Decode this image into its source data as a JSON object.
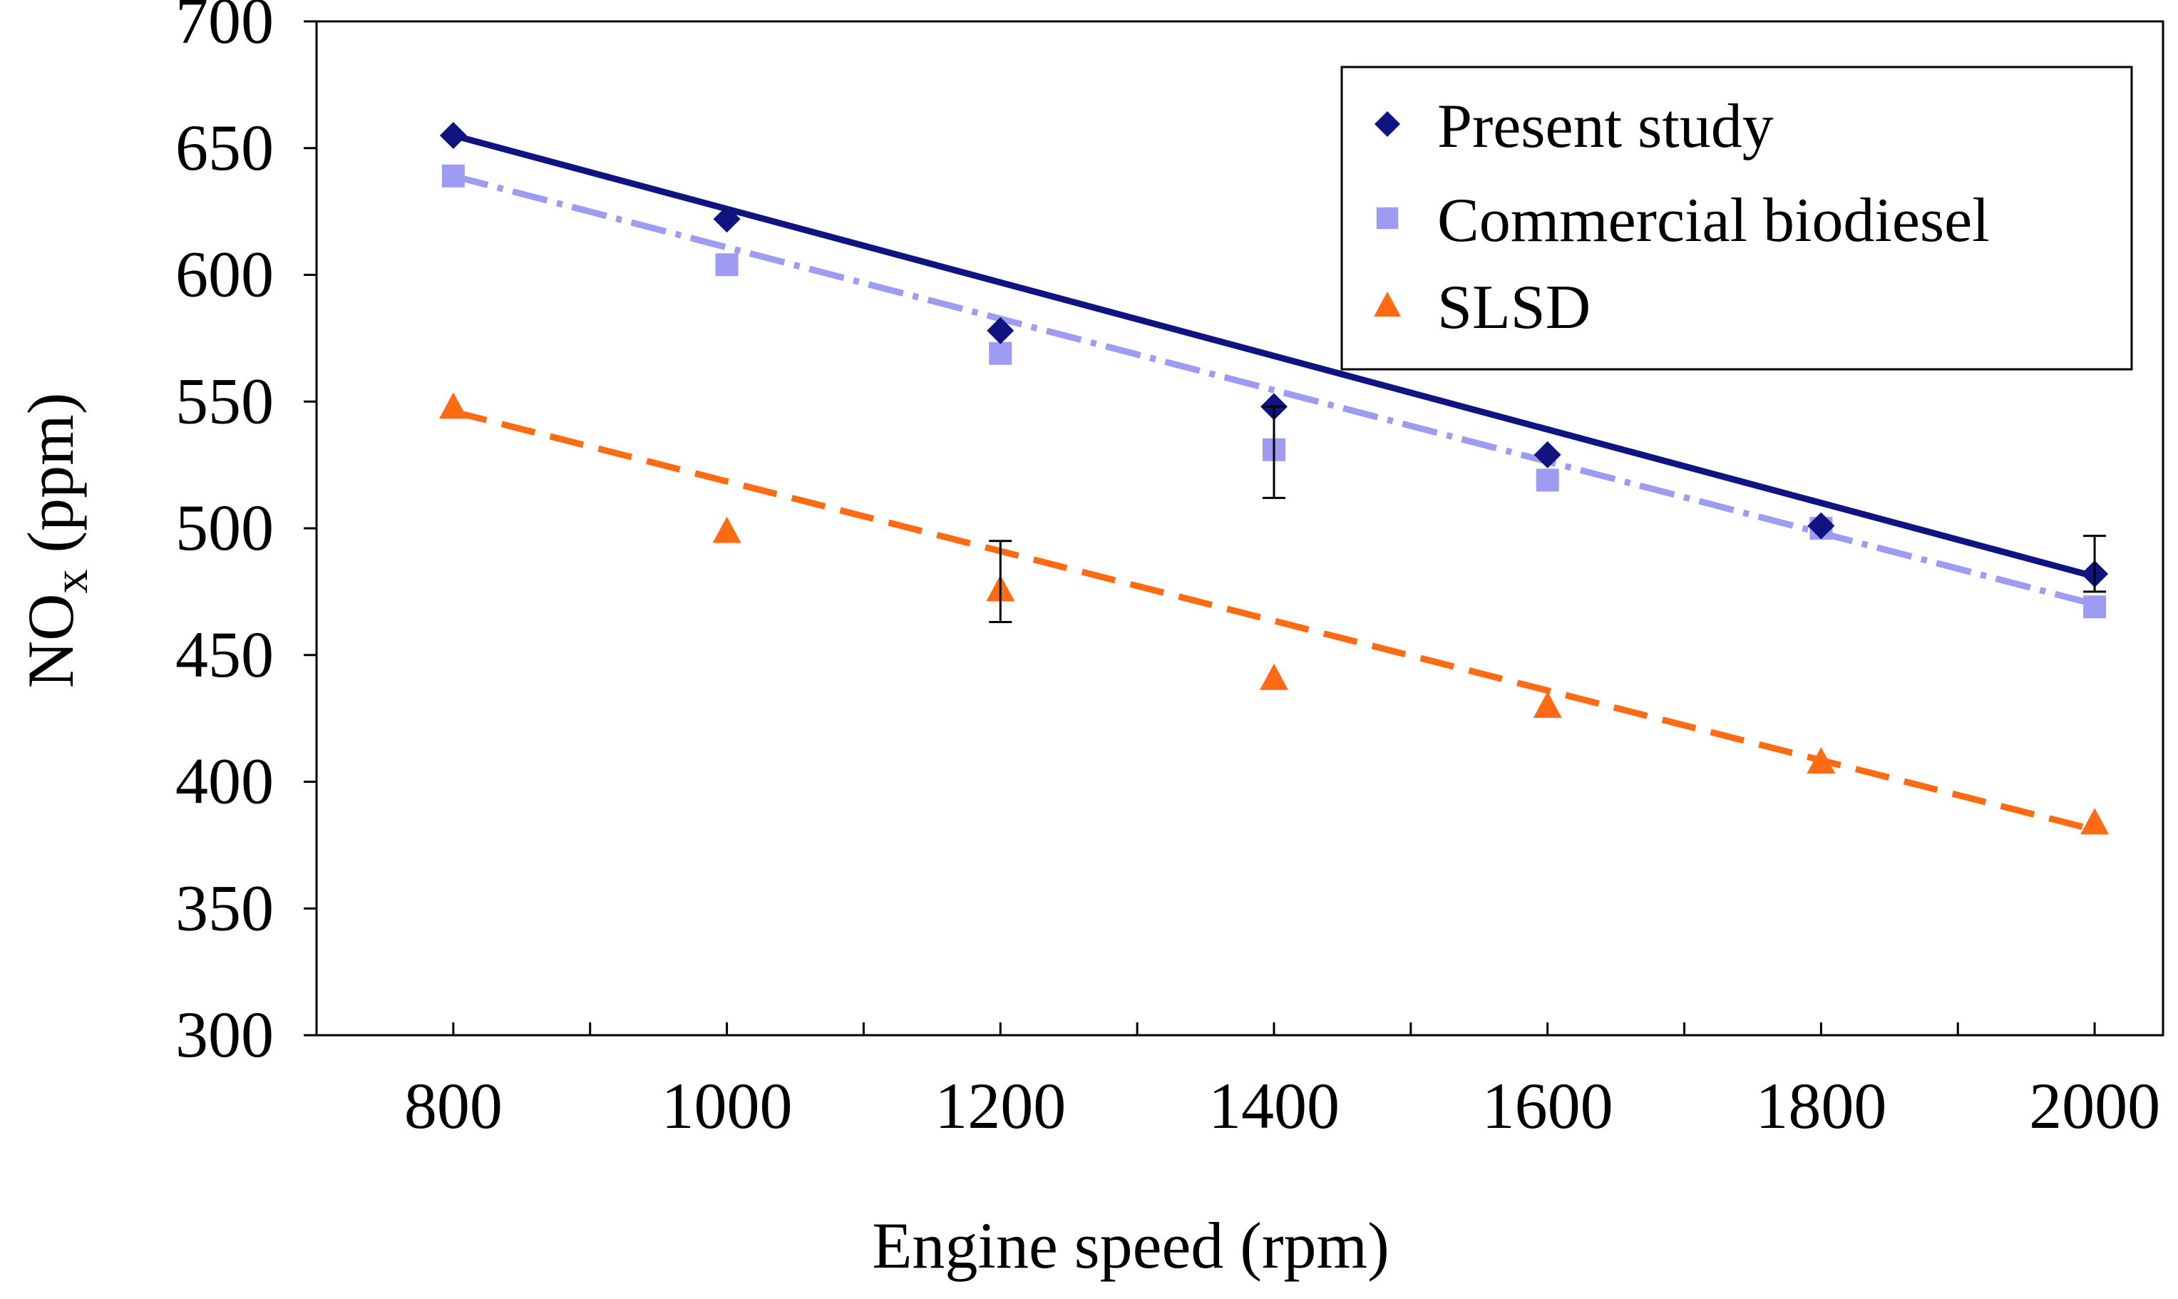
{
  "chart_data": {
    "type": "scatter",
    "xlabel": "Engine speed (rpm)",
    "ylabel_main": "NO",
    "ylabel_sub": "x",
    "ylabel_suffix": " (ppm)",
    "xlim": [
      700,
      2050
    ],
    "ylim": [
      300,
      700
    ],
    "x_ticks": [
      800,
      1000,
      1200,
      1400,
      1600,
      1800,
      2000
    ],
    "x_minor_step": 100,
    "y_ticks": [
      300,
      350,
      400,
      450,
      500,
      550,
      600,
      650,
      700
    ],
    "grid": false,
    "legend_position": "top-right",
    "series": [
      {
        "name": "Present study",
        "marker": "diamond",
        "color": "#0f1480",
        "trendline": "solid",
        "x": [
          800,
          1000,
          1200,
          1400,
          1600,
          1800,
          2000
        ],
        "values": [
          655,
          622,
          578,
          548,
          529,
          501,
          482
        ],
        "trend": [
          655,
          481
        ],
        "error_bars": [
          {
            "x": 1400,
            "low": 512,
            "high": 548
          },
          {
            "x": 2000,
            "low": 475,
            "high": 497
          }
        ]
      },
      {
        "name": "Commercial biodiesel",
        "marker": "square",
        "color": "#9d9bf2",
        "trendline": "dash-dot",
        "x": [
          800,
          1000,
          1200,
          1400,
          1600,
          1800,
          2000
        ],
        "values": [
          639,
          604,
          569,
          531,
          519,
          500,
          469
        ],
        "trend": [
          639,
          470
        ],
        "error_bars": []
      },
      {
        "name": "SLSD",
        "marker": "triangle",
        "color": "#ff6a12",
        "trendline": "dashed",
        "x": [
          800,
          1000,
          1200,
          1400,
          1600,
          1800,
          2000
        ],
        "values": [
          548,
          499,
          476,
          441,
          430,
          408,
          384
        ],
        "trend": [
          546,
          381
        ],
        "error_bars": [
          {
            "x": 1200,
            "low": 463,
            "high": 495
          }
        ]
      }
    ]
  }
}
